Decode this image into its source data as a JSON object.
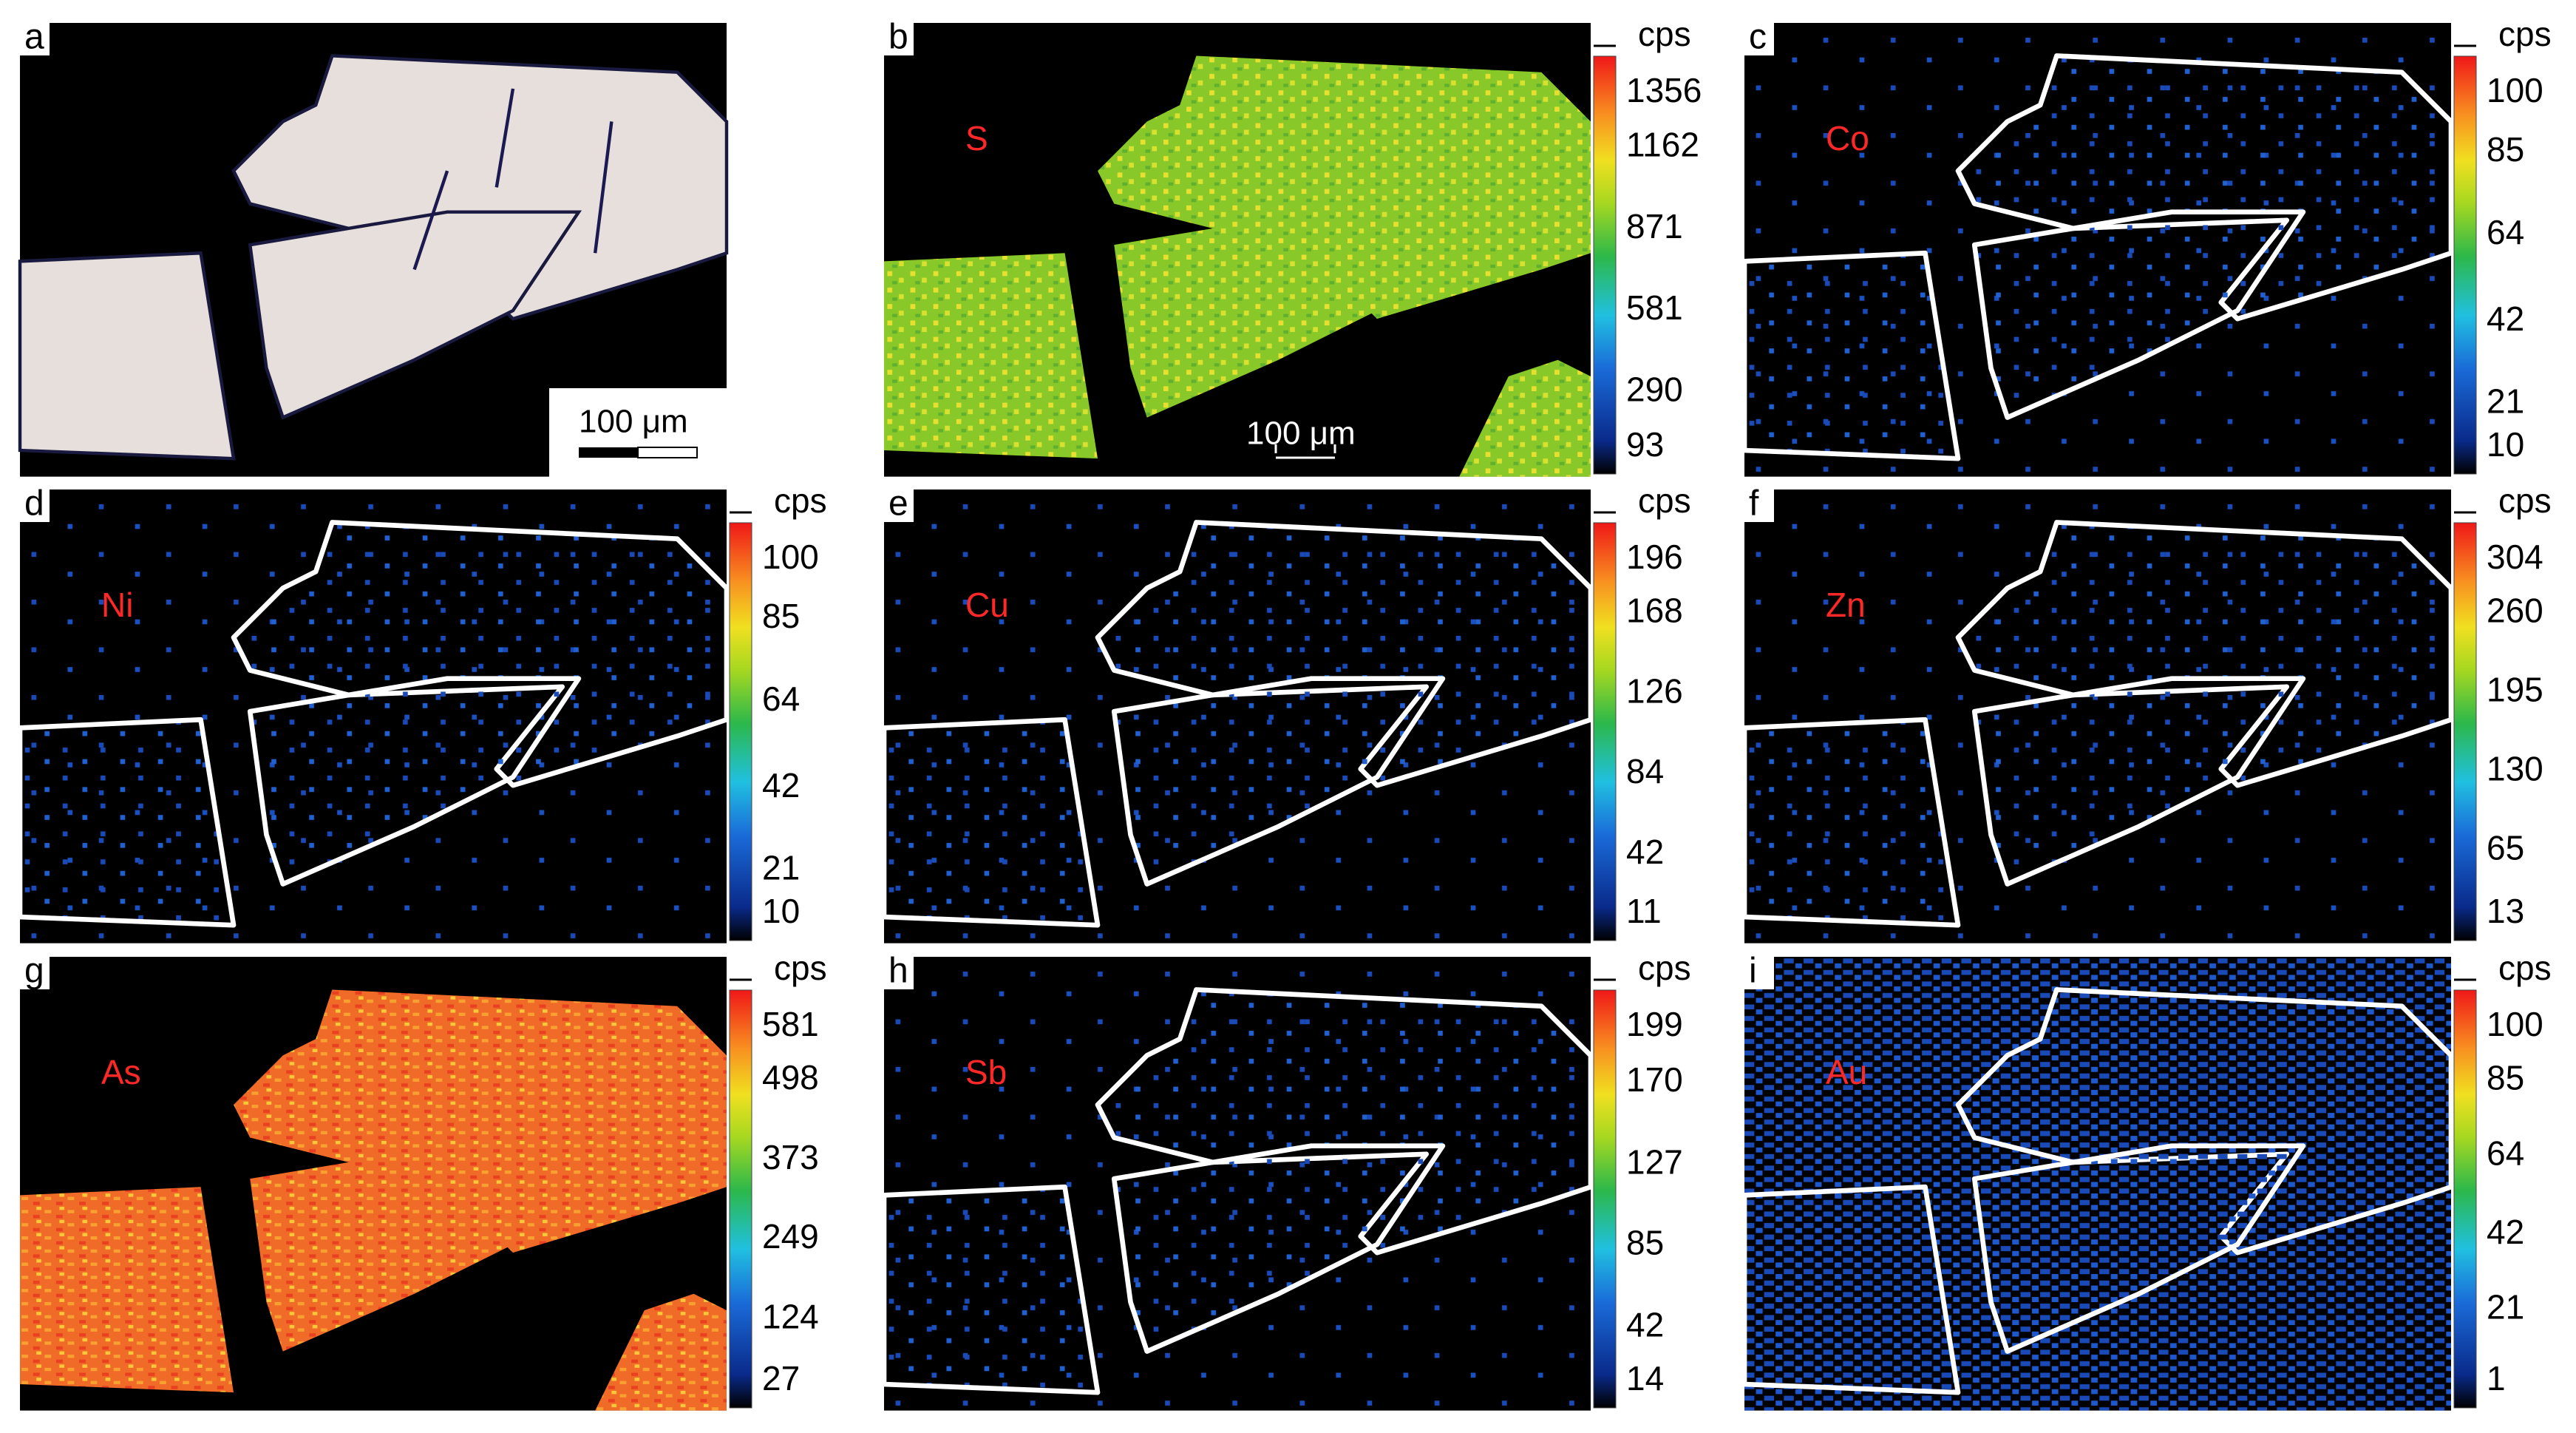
{
  "panels": [
    {
      "letter": "a",
      "scale_bar": "100 μm"
    },
    {
      "letter": "b",
      "element": "S",
      "unit": "cps",
      "ticks": [
        1356,
        1162,
        871,
        581,
        290,
        93
      ],
      "scale_bar": "100 μm"
    },
    {
      "letter": "c",
      "element": "Co",
      "unit": "cps",
      "ticks": [
        100,
        85,
        64,
        42,
        21,
        10
      ]
    },
    {
      "letter": "d",
      "element": "Ni",
      "unit": "cps",
      "ticks": [
        100,
        85,
        64,
        42,
        21,
        10
      ]
    },
    {
      "letter": "e",
      "element": "Cu",
      "unit": "cps",
      "ticks": [
        196,
        168,
        126,
        84,
        42,
        11
      ]
    },
    {
      "letter": "f",
      "element": "Zn",
      "unit": "cps",
      "ticks": [
        304,
        260,
        195,
        130,
        65,
        13
      ]
    },
    {
      "letter": "g",
      "element": "As",
      "unit": "cps",
      "ticks": [
        581,
        498,
        373,
        249,
        124,
        27
      ]
    },
    {
      "letter": "h",
      "element": "Sb",
      "unit": "cps",
      "ticks": [
        199,
        170,
        127,
        85,
        42,
        14
      ]
    },
    {
      "letter": "i",
      "element": "Au",
      "unit": "cps",
      "ticks": [
        100,
        85,
        64,
        42,
        21,
        1
      ]
    }
  ]
}
